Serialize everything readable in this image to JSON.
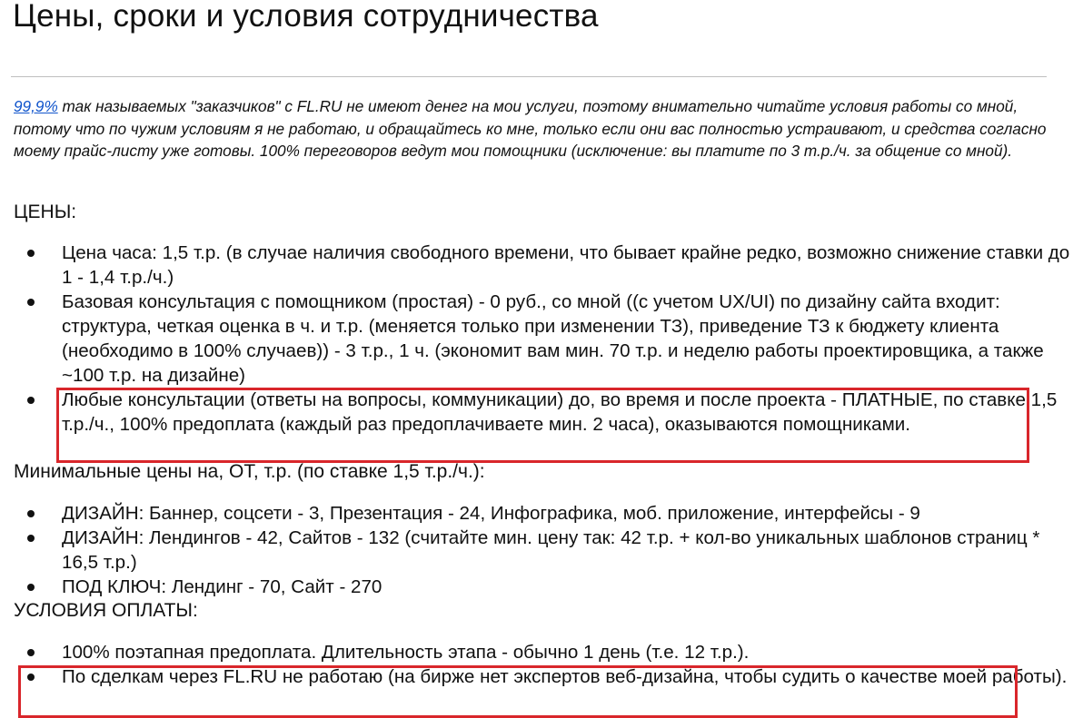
{
  "title": "Цены, сроки и условия сотрудничества",
  "intro": {
    "link": "99,9%",
    "text": " так называемых \"заказчиков\" с FL.RU не имеют денег на мои услуги, поэтому внимательно читайте условия работы со мной, потому что по чужим условиям я не работаю, и обращайтесь ко мне, только если они вас полностью устраивают, и средства согласно моему прайс-листу уже готовы. 100% переговоров ведут мои помощники (исключение: вы платите по 3 т.р./ч. за общение со мной)."
  },
  "prices": {
    "heading": "ЦЕНЫ:",
    "items": [
      "Цена часа: 1,5 т.р. (в случае наличия свободного времени, что бывает крайне редко, возможно снижение ставки до 1 - 1,4 т.р./ч.)",
      "Базовая консультация с помощником (простая) - 0 руб., со мной ((с учетом UX/UI) по дизайну сайта входит: структура, четкая оценка в ч. и т.р. (меняется только при изменении ТЗ), приведение ТЗ к бюджету клиента (необходимо в 100% случаев)) - 3 т.р., 1 ч. (экономит вам мин. 70 т.р. и неделю работы проектировщика, а также ~100 т.р. на дизайне)",
      "Любые консультации (ответы на вопросы, коммуникации) до, во время и после проекта - ПЛАТНЫЕ, по ставке 1,5 т.р./ч., 100% предоплата (каждый раз предоплачиваете мин. 2 часа), оказываются помощниками."
    ]
  },
  "min_prices": {
    "heading": "Минимальные цены на, ОТ, т.р. (по ставке 1,5 т.р./ч.):",
    "items": [
      "ДИЗАЙН: Баннер, соцсети - 3, Презентация - 24, Инфографика, моб. приложение, интерфейсы - 9",
      "ДИЗАЙН: Лендингов - 42, Сайтов - 132 (считайте мин. цену так: 42 т.р. + кол-во уникальных шаблонов страниц * 16,5 т.р.)",
      "ПОД КЛЮЧ: Лендинг - 70, Сайт - 270"
    ]
  },
  "payment": {
    "heading": "УСЛОВИЯ ОПЛАТЫ:",
    "items": [
      "100% поэтапная предоплата. Длительность этапа - обычно 1 день (т.е. 12 т.р.).",
      "По сделкам через FL.RU не работаю (на бирже нет экспертов веб-дизайна, чтобы судить о качестве моей работы)."
    ]
  },
  "colors": {
    "highlight_box": "#d9262b",
    "link": "#1155cc"
  }
}
